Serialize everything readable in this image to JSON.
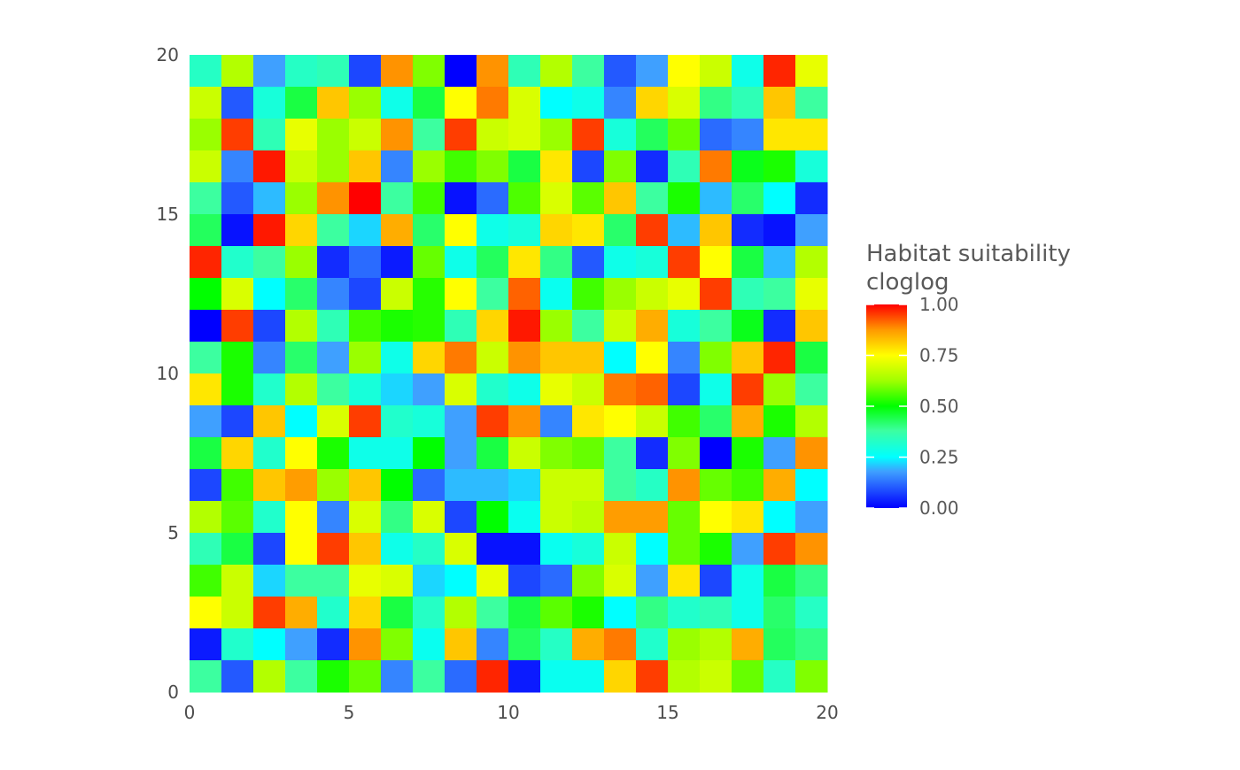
{
  "chart_data": {
    "type": "heatmap",
    "title": "",
    "xlabel": "",
    "ylabel": "",
    "xlim": [
      0,
      20
    ],
    "ylim": [
      0,
      20
    ],
    "x_ticks": [
      "0",
      "5",
      "10",
      "15",
      "20"
    ],
    "y_ticks": [
      "0",
      "5",
      "10",
      "15",
      "20"
    ],
    "grid": false,
    "legend": {
      "title_line1": "Habitat suitability",
      "title_line2": "cloglog",
      "placement": "right",
      "range": [
        0,
        1
      ],
      "ticks": [
        "0.00",
        "0.25",
        "0.50",
        "0.75",
        "1.00"
      ],
      "gradient": [
        {
          "value": 0.0,
          "color": "#0000ff"
        },
        {
          "value": 0.18,
          "color": "#3fa0ff"
        },
        {
          "value": 0.25,
          "color": "#00ffff"
        },
        {
          "value": 0.38,
          "color": "#3cffa0"
        },
        {
          "value": 0.5,
          "color": "#00ff00"
        },
        {
          "value": 0.625,
          "color": "#a0ff00"
        },
        {
          "value": 0.75,
          "color": "#ffff00"
        },
        {
          "value": 0.875,
          "color": "#ff9900"
        },
        {
          "value": 1.0,
          "color": "#ff0000"
        }
      ]
    },
    "rows_top_to_bottom": [
      [
        0.33,
        0.65,
        0.18,
        0.33,
        0.35,
        0.08,
        0.88,
        0.6,
        0.0,
        0.88,
        0.35,
        0.65,
        0.38,
        0.1,
        0.18,
        0.75,
        0.68,
        0.28,
        0.97,
        0.72
      ],
      [
        0.68,
        0.1,
        0.3,
        0.45,
        0.82,
        0.62,
        0.28,
        0.45,
        0.75,
        0.9,
        0.7,
        0.25,
        0.28,
        0.15,
        0.8,
        0.7,
        0.4,
        0.35,
        0.82,
        0.38
      ],
      [
        0.62,
        0.95,
        0.35,
        0.72,
        0.62,
        0.68,
        0.88,
        0.38,
        0.95,
        0.68,
        0.7,
        0.62,
        0.95,
        0.3,
        0.43,
        0.58,
        0.12,
        0.15,
        0.78,
        0.78
      ],
      [
        0.68,
        0.15,
        0.98,
        0.68,
        0.62,
        0.82,
        0.15,
        0.62,
        0.55,
        0.6,
        0.45,
        0.78,
        0.08,
        0.6,
        0.05,
        0.35,
        0.9,
        0.48,
        0.52,
        0.3
      ],
      [
        0.38,
        0.1,
        0.2,
        0.62,
        0.88,
        1.0,
        0.38,
        0.55,
        0.02,
        0.12,
        0.56,
        0.7,
        0.57,
        0.82,
        0.38,
        0.52,
        0.2,
        0.42,
        0.25,
        0.05
      ],
      [
        0.43,
        0.02,
        0.98,
        0.8,
        0.38,
        0.22,
        0.85,
        0.42,
        0.75,
        0.28,
        0.3,
        0.8,
        0.78,
        0.42,
        0.95,
        0.2,
        0.82,
        0.05,
        0.02,
        0.18
      ],
      [
        0.97,
        0.32,
        0.38,
        0.62,
        0.05,
        0.12,
        0.03,
        0.58,
        0.28,
        0.43,
        0.78,
        0.4,
        0.1,
        0.28,
        0.3,
        0.95,
        0.75,
        0.45,
        0.2,
        0.65
      ],
      [
        0.5,
        0.7,
        0.25,
        0.42,
        0.15,
        0.08,
        0.68,
        0.53,
        0.75,
        0.38,
        0.92,
        0.27,
        0.55,
        0.62,
        0.68,
        0.72,
        0.95,
        0.35,
        0.38,
        0.72
      ],
      [
        0.0,
        0.95,
        0.08,
        0.65,
        0.35,
        0.55,
        0.52,
        0.53,
        0.35,
        0.8,
        0.98,
        0.62,
        0.38,
        0.68,
        0.85,
        0.3,
        0.38,
        0.48,
        0.05,
        0.82
      ],
      [
        0.38,
        0.52,
        0.15,
        0.42,
        0.18,
        0.62,
        0.28,
        0.8,
        0.9,
        0.68,
        0.88,
        0.82,
        0.82,
        0.25,
        0.75,
        0.15,
        0.6,
        0.82,
        0.97,
        0.45
      ],
      [
        0.78,
        0.52,
        0.32,
        0.65,
        0.38,
        0.3,
        0.22,
        0.18,
        0.7,
        0.32,
        0.28,
        0.72,
        0.68,
        0.9,
        0.92,
        0.08,
        0.28,
        0.95,
        0.62,
        0.38
      ],
      [
        0.18,
        0.08,
        0.82,
        0.25,
        0.7,
        0.95,
        0.32,
        0.3,
        0.18,
        0.95,
        0.88,
        0.15,
        0.78,
        0.75,
        0.68,
        0.55,
        0.42,
        0.85,
        0.52,
        0.65
      ],
      [
        0.45,
        0.8,
        0.32,
        0.75,
        0.52,
        0.28,
        0.28,
        0.5,
        0.18,
        0.45,
        0.68,
        0.6,
        0.58,
        0.38,
        0.05,
        0.6,
        0.0,
        0.52,
        0.18,
        0.88
      ],
      [
        0.08,
        0.55,
        0.82,
        0.87,
        0.62,
        0.82,
        0.5,
        0.12,
        0.2,
        0.2,
        0.22,
        0.68,
        0.68,
        0.38,
        0.33,
        0.88,
        0.58,
        0.55,
        0.85,
        0.25
      ],
      [
        0.65,
        0.57,
        0.32,
        0.75,
        0.15,
        0.7,
        0.4,
        0.7,
        0.08,
        0.5,
        0.27,
        0.68,
        0.66,
        0.87,
        0.87,
        0.58,
        0.75,
        0.78,
        0.25,
        0.18
      ],
      [
        0.35,
        0.45,
        0.08,
        0.75,
        0.95,
        0.82,
        0.28,
        0.33,
        0.7,
        0.02,
        0.02,
        0.27,
        0.3,
        0.68,
        0.25,
        0.58,
        0.52,
        0.18,
        0.95,
        0.88
      ],
      [
        0.55,
        0.68,
        0.22,
        0.38,
        0.38,
        0.72,
        0.7,
        0.22,
        0.25,
        0.72,
        0.08,
        0.12,
        0.6,
        0.7,
        0.18,
        0.78,
        0.08,
        0.28,
        0.45,
        0.4
      ],
      [
        0.75,
        0.68,
        0.95,
        0.85,
        0.32,
        0.8,
        0.45,
        0.33,
        0.65,
        0.38,
        0.45,
        0.57,
        0.52,
        0.25,
        0.4,
        0.32,
        0.35,
        0.28,
        0.42,
        0.33
      ],
      [
        0.03,
        0.32,
        0.25,
        0.18,
        0.05,
        0.88,
        0.6,
        0.27,
        0.82,
        0.15,
        0.43,
        0.33,
        0.85,
        0.9,
        0.32,
        0.62,
        0.65,
        0.85,
        0.43,
        0.4
      ],
      [
        0.38,
        0.1,
        0.65,
        0.38,
        0.52,
        0.58,
        0.15,
        0.38,
        0.12,
        0.97,
        0.03,
        0.27,
        0.27,
        0.8,
        0.95,
        0.65,
        0.68,
        0.58,
        0.33,
        0.6
      ]
    ]
  }
}
